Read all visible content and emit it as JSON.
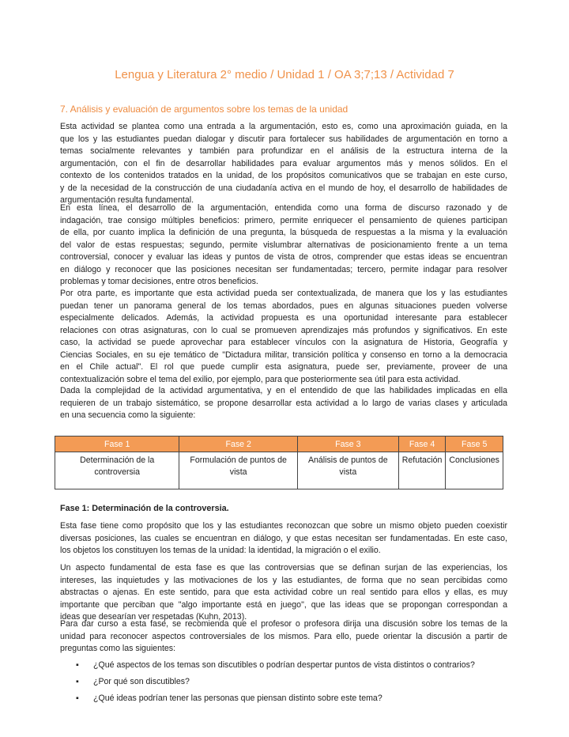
{
  "title": "Lengua y Literatura 2° medio / Unidad 1 / OA 3;7;13 / Actividad 7",
  "section_heading": "7. Análisis y evaluación de argumentos sobre los temas de la unidad",
  "paragraphs_intro": [
    [
      "Esta actividad se plantea como una entrada a la argumentación, esto es, como una aproximación guiada, en la",
      "que los y las estudiantes puedan dialogar y discutir para fortalecer sus habilidades de argumentación en torno a",
      "temas socialmente relevantes y también para profundizar en el análisis de la estructura interna de la",
      "argumentación, con el fin de desarrollar habilidades para evaluar argumentos más y menos sólidos. En el",
      "contexto de los contenidos tratados en la unidad, de los propósitos comunicativos que se trabajan en este curso,",
      "y de la necesidad de la construcción de una ciudadanía activa en el mundo de hoy, el desarrollo de habilidades de",
      "argumentación resulta fundamental."
    ],
    [
      "En esta línea, el desarrollo de la argumentación, entendida como una forma de discurso razonado y de",
      "indagación, trae consigo múltiples beneficios: primero, permite enriquecer el pensamiento de quienes participan",
      "de ella, por cuanto implica la definición de una pregunta, la búsqueda de respuestas a la misma y la evaluación",
      "del valor de estas respuestas; segundo, permite vislumbrar alternativas de posicionamiento frente a un tema",
      "controversial, conocer y evaluar las ideas y puntos de vista de otros, comprender que estas ideas se encuentran",
      "en diálogo y reconocer que las posiciones necesitan ser fundamentadas; tercero, permite indagar para resolver",
      "problemas y tomar decisiones, entre otros beneficios."
    ],
    [
      "Por otra parte, es importante que esta actividad pueda ser contextualizada, de manera que los y las estudiantes",
      "puedan tener un panorama general de los temas abordados, pues en algunas situaciones pueden volverse",
      "especialmente delicados. Además, la actividad propuesta es una oportunidad interesante para establecer",
      "relaciones con otras asignaturas, con lo cual se promueven aprendizajes más profundos y significativos. En este",
      "caso, la actividad se puede aprovechar para establecer vínculos con la asignatura de Historia, Geografía y",
      "Ciencias Sociales, en su eje temático de \"Dictadura militar, transición política y consenso en torno a la democracia",
      "en el Chile actual\". El rol que puede cumplir esta asignatura, puede ser, previamente, proveer de una",
      "contextualización sobre el tema del exilio, por ejemplo, para que posteriormente sea útil para esta actividad."
    ],
    [
      "Dada la complejidad de la actividad argumentativa, y en el entendido de que las habilidades implicadas en ella",
      "requieren de un trabajo sistemático, se propone desarrollar esta actividad a lo largo de varias clases y articulada",
      "en una secuencia como la siguiente:"
    ]
  ],
  "table": {
    "headers": [
      "Fase 1",
      "Fase 2",
      "Fase 3",
      "Fase 4",
      "Fase 5"
    ],
    "cells": [
      "Determinación de la controversia",
      "Formulación de puntos de vista",
      "Análisis de puntos de vista",
      "Refutación",
      "Conclusiones"
    ]
  },
  "phase_heading": "Fase 1: Determinación de la controversia.",
  "paragraphs_phase": [
    [
      "Esta fase tiene como propósito que los y las estudiantes reconozcan que sobre un mismo objeto pueden coexistir",
      "diversas posiciones, las cuales se encuentran en diálogo, y que estas necesitan ser fundamentadas. En este caso,",
      "los objetos los constituyen los temas de la unidad: la identidad, la migración o el exilio."
    ],
    [
      "Un aspecto fundamental de esta fase es que las controversias que se definan surjan de las experiencias, los",
      "intereses, las inquietudes y las motivaciones de los y las estudiantes, de forma que no sean percibidas como",
      "abstractas o ajenas. En este sentido, para que esta actividad cobre un real sentido para ellos y ellas, es muy",
      "importante que perciban que \"algo importante está en juego\", que las ideas que se propongan correspondan a",
      "ideas que desearían ver respetadas (Kuhn, 2013)."
    ],
    [
      "Para dar curso a esta fase, se recomienda que el profesor o profesora dirija una discusión sobre los temas de la",
      "unidad para reconocer aspectos controversiales de los mismos. Para ello, puede orientar la discusión a partir de",
      "preguntas como las siguientes:"
    ]
  ],
  "bullets": [
    "¿Qué aspectos de los temas son discutibles o podrían despertar puntos de vista distintos o contrarios?",
    "¿Por qué son discutibles?",
    "¿Qué ideas podrían tener las personas que piensan distinto sobre este tema?"
  ],
  "colors": {
    "accent": "#f39b55",
    "title": "#f0924a"
  }
}
